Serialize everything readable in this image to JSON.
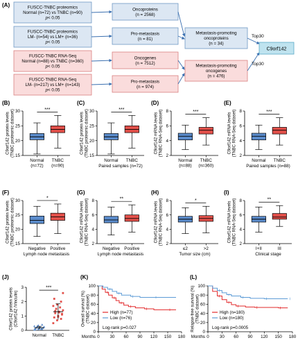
{
  "flow": {
    "panel_label": "(A)",
    "left_boxes": [
      {
        "lines": [
          "FUSCC-TNBC proteomics",
          "Normal (n=72) vs TNBC (n=90)",
          "p< 0.05"
        ],
        "fill": "#dce7f3",
        "stroke": "#6f98c4"
      },
      {
        "lines": [
          "FUSCC-TNBC proteomics",
          "LM- (n=54) vs LM+ (n=36)",
          "p< 0.05"
        ],
        "fill": "#dce7f3",
        "stroke": "#6f98c4"
      },
      {
        "lines": [
          "FUSCC-TNBC RNA-Seq",
          "Normal (n=88) vs TNBC (n=360)",
          "p< 0.05"
        ],
        "fill": "#fadcdc",
        "stroke": "#d98080"
      },
      {
        "lines": [
          "FUSCC-TNBC RNA-Seq",
          "LM- (n=217) vs LM+ (n=143)",
          "p< 0.05"
        ],
        "fill": "#fadcdc",
        "stroke": "#d98080"
      }
    ],
    "mid_boxes": [
      {
        "lines": [
          "Oncoproteins",
          "(n = 2568)"
        ],
        "fill": "#dce7f3",
        "stroke": "#6f98c4"
      },
      {
        "lines": [
          "Pro-metastasis",
          "(n = 81)"
        ],
        "fill": "#dce7f3",
        "stroke": "#6f98c4"
      },
      {
        "lines": [
          "Oncogenes",
          "(n = 7512)"
        ],
        "fill": "#fadcdc",
        "stroke": "#d98080"
      },
      {
        "lines": [
          "Pro-metastasis",
          "(n = 974)"
        ],
        "fill": "#fadcdc",
        "stroke": "#d98080"
      }
    ],
    "right_boxes": [
      {
        "lines": [
          "Metastasis-promoting",
          "oncoproteins",
          "(n = 34)"
        ],
        "fill": "#dce7f3",
        "stroke": "#6f98c4"
      },
      {
        "lines": [
          "Metastasis-promoting",
          "oncogenes",
          "(n = 476)"
        ],
        "fill": "#fadcdc",
        "stroke": "#d98080"
      }
    ],
    "top30_upper": "Top30",
    "top30_lower": "Top30",
    "result": "C9orf142",
    "result_fill": "#bfe3ef",
    "result_stroke": "#5aa8c7"
  },
  "colors": {
    "normal": "#5b8ccc",
    "tnbc": "#e2504a",
    "km_high": "#e2282a",
    "km_low": "#5c9bd6"
  },
  "chart_data": [
    {
      "type": "box",
      "panel": "(B)",
      "ylabel": [
        "C9orf142 protein levels",
        "(TNBC proteomic dataset)"
      ],
      "ylim": [
        15,
        30
      ],
      "yticks": [
        15,
        20,
        25,
        30
      ],
      "categories": [
        [
          "Normal",
          "(n=72)"
        ],
        [
          "TNBC",
          "(n=90)"
        ]
      ],
      "xtitle": "",
      "sig": "***",
      "boxes": [
        {
          "min": 15.5,
          "q1": 20.3,
          "median": 21.3,
          "q3": 22.4,
          "max": 26.0
        },
        {
          "min": 17.5,
          "q1": 22.7,
          "median": 23.8,
          "q3": 25.0,
          "max": 28.5
        }
      ]
    },
    {
      "type": "box",
      "panel": "(C)",
      "ylabel": [
        "C9orf142 protein levels",
        "(TNBC proteomic dataset)"
      ],
      "ylim": [
        15,
        30
      ],
      "yticks": [
        15,
        20,
        25,
        30
      ],
      "categories": [
        [
          "Normal"
        ],
        [
          "TNBC"
        ]
      ],
      "xtitle": "Paired samples (n=72)",
      "sig": "***",
      "boxes": [
        {
          "min": 15.5,
          "q1": 20.3,
          "median": 21.3,
          "q3": 22.4,
          "max": 26.0
        },
        {
          "min": 17.5,
          "q1": 22.7,
          "median": 23.8,
          "q3": 25.0,
          "max": 28.5
        }
      ]
    },
    {
      "type": "box",
      "panel": "(D)",
      "ylabel": [
        "C9orf142 mRNA levels",
        "(TNBC RNA-Seq dataset)"
      ],
      "ylim": [
        2,
        8
      ],
      "yticks": [
        2,
        4,
        6,
        8
      ],
      "categories": [
        [
          "Normal",
          "(n=88)"
        ],
        [
          "TNBC",
          "(n=360)"
        ]
      ],
      "xtitle": "",
      "sig": "***",
      "boxes": [
        {
          "min": 2.8,
          "q1": 4.1,
          "median": 4.6,
          "q3": 5.0,
          "max": 6.1
        },
        {
          "min": 3.4,
          "q1": 4.9,
          "median": 5.4,
          "q3": 5.8,
          "max": 7.1
        }
      ]
    },
    {
      "type": "box",
      "panel": "(E)",
      "ylabel": [
        "C9orf142 mRNA levels",
        "(TNBC RNA-Seq dataset)"
      ],
      "ylim": [
        2,
        8
      ],
      "yticks": [
        2,
        4,
        6,
        8
      ],
      "categories": [
        [
          "Normal"
        ],
        [
          "TNBC"
        ]
      ],
      "xtitle": "Paired samples (n=88)",
      "sig": "***",
      "boxes": [
        {
          "min": 2.8,
          "q1": 4.1,
          "median": 4.6,
          "q3": 5.0,
          "max": 6.1
        },
        {
          "min": 3.4,
          "q1": 4.9,
          "median": 5.4,
          "q3": 5.8,
          "max": 7.1
        }
      ]
    },
    {
      "type": "box",
      "panel": "(F)",
      "ylabel": [
        "C9orf142 protein levels",
        "(TNBC proteomic dataset)"
      ],
      "ylim": [
        15,
        30
      ],
      "yticks": [
        15,
        20,
        25,
        30
      ],
      "categories": [
        [
          "Negative"
        ],
        [
          "Positive"
        ]
      ],
      "xtitle": "Lymph node metastasis",
      "sig": "*",
      "boxes": [
        {
          "min": 17.5,
          "q1": 22.0,
          "median": 23.1,
          "q3": 24.6,
          "max": 28.0
        },
        {
          "min": 18.5,
          "q1": 23.1,
          "median": 24.3,
          "q3": 25.6,
          "max": 28.8
        }
      ]
    },
    {
      "type": "box",
      "panel": "(G)",
      "ylabel": [
        "C9orf142 mRNA levels",
        "(TNBC RNA-Seq dataset)"
      ],
      "ylim": [
        2,
        8
      ],
      "yticks": [
        2,
        4,
        6,
        8
      ],
      "categories": [
        [
          "Negative"
        ],
        [
          "Positive"
        ]
      ],
      "xtitle": "Lymph node metastasis",
      "sig": "**",
      "boxes": [
        {
          "min": 3.2,
          "q1": 4.9,
          "median": 5.3,
          "q3": 5.8,
          "max": 7.1
        },
        {
          "min": 3.6,
          "q1": 5.1,
          "median": 5.5,
          "q3": 6.0,
          "max": 7.4
        }
      ]
    },
    {
      "type": "box",
      "panel": "(H)",
      "ylabel": [
        "C9orf142 mRNA levels",
        "(TNBC RNA-Seq dataset)"
      ],
      "ylim": [
        2,
        8
      ],
      "yticks": [
        2,
        4,
        6,
        8
      ],
      "categories": [
        [
          "≤2"
        ],
        [
          ">2"
        ]
      ],
      "xtitle": "Tumor size (cm)",
      "sig": "*",
      "boxes": [
        {
          "min": 3.4,
          "q1": 5.0,
          "median": 5.4,
          "q3": 5.8,
          "max": 7.0
        },
        {
          "min": 3.5,
          "q1": 5.1,
          "median": 5.5,
          "q3": 5.9,
          "max": 7.2
        }
      ]
    },
    {
      "type": "box",
      "panel": "(I)",
      "ylabel": [
        "C9orf142 mRNA levels",
        "(TNBC RNA-Seq dataset)"
      ],
      "ylim": [
        2,
        8
      ],
      "yticks": [
        2,
        4,
        6,
        8
      ],
      "categories": [
        [
          "I+II"
        ],
        [
          "III"
        ]
      ],
      "xtitle": "Clinical stage",
      "sig": "**",
      "boxes": [
        {
          "min": 3.6,
          "q1": 5.0,
          "median": 5.4,
          "q3": 5.8,
          "max": 7.1
        },
        {
          "min": 4.4,
          "q1": 5.4,
          "median": 5.7,
          "q3": 6.2,
          "max": 7.3
        }
      ]
    },
    {
      "type": "scatter",
      "panel": "(J)",
      "ylabel": [
        "C9orf142 protein levels",
        "(C9orf142 /Vinculin)"
      ],
      "ylim": [
        0,
        3
      ],
      "yticks": [
        0,
        1,
        2,
        3
      ],
      "categories": [
        "Normal",
        "TNBC"
      ],
      "sig": "***",
      "groups": [
        {
          "values": [
            0.05,
            0.08,
            0.1,
            0.12,
            0.15,
            0.18,
            0.2,
            0.22,
            0.25,
            0.28,
            0.1,
            0.3,
            0.35,
            0.4,
            0.06,
            0.14
          ],
          "mean": 0.18,
          "sd": 0.1
        },
        {
          "values": [
            0.5,
            0.7,
            0.8,
            0.9,
            1.0,
            1.1,
            1.2,
            1.3,
            1.4,
            1.5,
            1.6,
            1.7,
            1.8,
            2.0,
            2.2,
            0.95,
            1.15,
            1.35,
            1.25,
            2.6
          ],
          "mean": 1.3,
          "sd": 0.55
        }
      ]
    },
    {
      "type": "line",
      "panel": "(K)",
      "ylabel": [
        "Overall survival (%)",
        "(TNBC dataset)"
      ],
      "ylim": [
        0,
        100
      ],
      "yticks": [
        0,
        20,
        40,
        60,
        80,
        100
      ],
      "xlim": [
        0,
        180
      ],
      "xticks": [
        0,
        30,
        60,
        90,
        120,
        150,
        180
      ],
      "xunit": "Months",
      "series": [
        {
          "name": "High (n=77)",
          "x": [
            0,
            8,
            15,
            22,
            30,
            38,
            45,
            55,
            65,
            80,
            100,
            120,
            150
          ],
          "y": [
            100,
            93,
            86,
            80,
            74,
            68,
            63,
            58,
            55,
            52,
            50,
            48,
            48
          ]
        },
        {
          "name": "Low (n=76)",
          "x": [
            0,
            10,
            20,
            30,
            40,
            50,
            70,
            90,
            120,
            150
          ],
          "y": [
            100,
            97,
            93,
            88,
            84,
            80,
            77,
            75,
            75,
            75
          ]
        }
      ],
      "annotation": "Log-rank p=0.027"
    },
    {
      "type": "line",
      "panel": "(L)",
      "ylabel": [
        "Relapse-free survival (%)",
        "(TNBC dataset)"
      ],
      "ylim": [
        0,
        100
      ],
      "yticks": [
        0,
        20,
        40,
        60,
        80,
        100
      ],
      "xlim": [
        0,
        180
      ],
      "xticks": [
        0,
        30,
        60,
        90,
        120,
        150,
        180
      ],
      "xunit": "Months",
      "series": [
        {
          "name": "High (n=180)",
          "x": [
            0,
            10,
            20,
            30,
            40,
            50,
            60,
            80,
            100,
            120,
            150,
            170
          ],
          "y": [
            100,
            88,
            78,
            70,
            64,
            59,
            56,
            54,
            53,
            53,
            52,
            52
          ]
        },
        {
          "name": "Low (n=180)",
          "x": [
            0,
            10,
            20,
            30,
            40,
            50,
            70,
            90,
            120,
            150,
            170
          ],
          "y": [
            100,
            95,
            90,
            85,
            81,
            78,
            75,
            73,
            72,
            72,
            72
          ]
        }
      ],
      "annotation": "Log-rank p=0.0005"
    }
  ]
}
